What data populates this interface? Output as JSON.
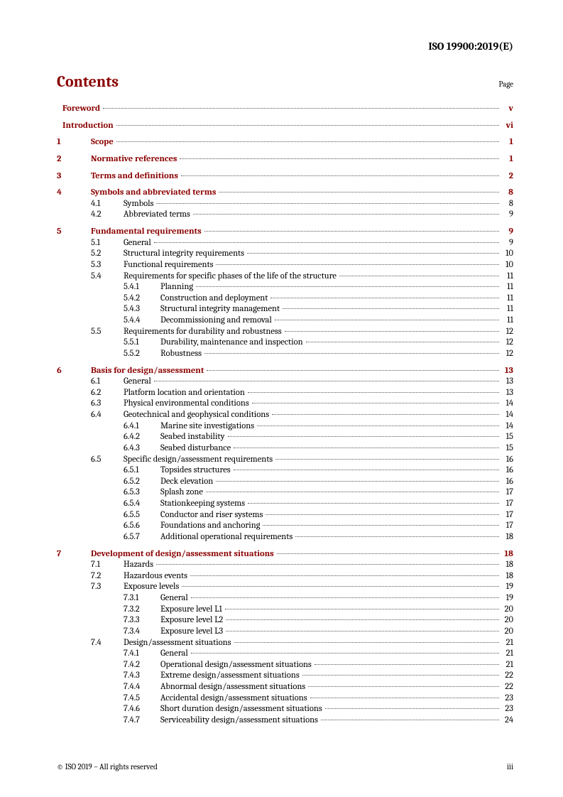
{
  "docId": "ISO 19900:2019(E)",
  "header": {
    "title": "Contents",
    "pageLabel": "Page"
  },
  "footer": {
    "left": "© ISO 2019 – All rights reserved",
    "right": "iii"
  },
  "toc": [
    {
      "level": 0,
      "num": "",
      "title": "Foreword",
      "page": "v",
      "bold": true,
      "red": true,
      "gap": false
    },
    {
      "level": 0,
      "num": "",
      "title": "Introduction",
      "page": "vi",
      "bold": true,
      "red": true,
      "gap": true
    },
    {
      "level": 1,
      "num": "1",
      "title": "Scope",
      "page": "1",
      "bold": true,
      "red": true,
      "gap": true
    },
    {
      "level": 1,
      "num": "2",
      "title": "Normative references",
      "page": "1",
      "bold": true,
      "red": true,
      "gap": true
    },
    {
      "level": 1,
      "num": "3",
      "title": "Terms and definitions",
      "page": "2",
      "bold": true,
      "red": true,
      "gap": true
    },
    {
      "level": 1,
      "num": "4",
      "title": "Symbols and abbreviated terms",
      "page": "8",
      "bold": true,
      "red": true,
      "gap": true
    },
    {
      "level": 2,
      "num": "4.1",
      "title": "Symbols",
      "page": "8",
      "bold": false,
      "red": false,
      "gap": false
    },
    {
      "level": 2,
      "num": "4.2",
      "title": "Abbreviated terms",
      "page": "9",
      "bold": false,
      "red": false,
      "gap": false
    },
    {
      "level": 1,
      "num": "5",
      "title": "Fundamental requirements",
      "page": "9",
      "bold": true,
      "red": true,
      "gap": true
    },
    {
      "level": 2,
      "num": "5.1",
      "title": "General",
      "page": "9",
      "bold": false,
      "red": false,
      "gap": false
    },
    {
      "level": 2,
      "num": "5.2",
      "title": "Structural integrity requirements",
      "page": "10",
      "bold": false,
      "red": false,
      "gap": false
    },
    {
      "level": 2,
      "num": "5.3",
      "title": "Functional requirements",
      "page": "10",
      "bold": false,
      "red": false,
      "gap": false
    },
    {
      "level": 2,
      "num": "5.4",
      "title": "Requirements for specific phases of the life of the structure",
      "page": "11",
      "bold": false,
      "red": false,
      "gap": false
    },
    {
      "level": 3,
      "num": "5.4.1",
      "title": "Planning",
      "page": "11",
      "bold": false,
      "red": false,
      "gap": false
    },
    {
      "level": 3,
      "num": "5.4.2",
      "title": "Construction and deployment",
      "page": "11",
      "bold": false,
      "red": false,
      "gap": false
    },
    {
      "level": 3,
      "num": "5.4.3",
      "title": "Structural integrity management",
      "page": "11",
      "bold": false,
      "red": false,
      "gap": false
    },
    {
      "level": 3,
      "num": "5.4.4",
      "title": "Decommissioning and removal",
      "page": "11",
      "bold": false,
      "red": false,
      "gap": false
    },
    {
      "level": 2,
      "num": "5.5",
      "title": "Requirements for durability and robustness",
      "page": "12",
      "bold": false,
      "red": false,
      "gap": false
    },
    {
      "level": 3,
      "num": "5.5.1",
      "title": "Durability, maintenance and inspection",
      "page": "12",
      "bold": false,
      "red": false,
      "gap": false
    },
    {
      "level": 3,
      "num": "5.5.2",
      "title": "Robustness",
      "page": "12",
      "bold": false,
      "red": false,
      "gap": false
    },
    {
      "level": 1,
      "num": "6",
      "title": "Basis for design/assessment",
      "page": "13",
      "bold": true,
      "red": true,
      "gap": true
    },
    {
      "level": 2,
      "num": "6.1",
      "title": "General",
      "page": "13",
      "bold": false,
      "red": false,
      "gap": false
    },
    {
      "level": 2,
      "num": "6.2",
      "title": "Platform location and orientation",
      "page": "13",
      "bold": false,
      "red": false,
      "gap": false
    },
    {
      "level": 2,
      "num": "6.3",
      "title": "Physical environmental conditions",
      "page": "14",
      "bold": false,
      "red": false,
      "gap": false
    },
    {
      "level": 2,
      "num": "6.4",
      "title": "Geotechnical and geophysical conditions",
      "page": "14",
      "bold": false,
      "red": false,
      "gap": false
    },
    {
      "level": 3,
      "num": "6.4.1",
      "title": "Marine site investigations",
      "page": "14",
      "bold": false,
      "red": false,
      "gap": false
    },
    {
      "level": 3,
      "num": "6.4.2",
      "title": "Seabed instability",
      "page": "15",
      "bold": false,
      "red": false,
      "gap": false
    },
    {
      "level": 3,
      "num": "6.4.3",
      "title": "Seabed disturbance",
      "page": "15",
      "bold": false,
      "red": false,
      "gap": false
    },
    {
      "level": 2,
      "num": "6.5",
      "title": "Specific design/assessment requirements",
      "page": "16",
      "bold": false,
      "red": false,
      "gap": false
    },
    {
      "level": 3,
      "num": "6.5.1",
      "title": "Topsides structures",
      "page": "16",
      "bold": false,
      "red": false,
      "gap": false
    },
    {
      "level": 3,
      "num": "6.5.2",
      "title": "Deck elevation",
      "page": "16",
      "bold": false,
      "red": false,
      "gap": false
    },
    {
      "level": 3,
      "num": "6.5.3",
      "title": "Splash zone",
      "page": "17",
      "bold": false,
      "red": false,
      "gap": false
    },
    {
      "level": 3,
      "num": "6.5.4",
      "title": "Stationkeeping systems",
      "page": "17",
      "bold": false,
      "red": false,
      "gap": false
    },
    {
      "level": 3,
      "num": "6.5.5",
      "title": "Conductor and riser systems",
      "page": "17",
      "bold": false,
      "red": false,
      "gap": false
    },
    {
      "level": 3,
      "num": "6.5.6",
      "title": "Foundations and anchoring",
      "page": "17",
      "bold": false,
      "red": false,
      "gap": false
    },
    {
      "level": 3,
      "num": "6.5.7",
      "title": "Additional operational requirements",
      "page": "18",
      "bold": false,
      "red": false,
      "gap": false
    },
    {
      "level": 1,
      "num": "7",
      "title": "Development of design/assessment situations",
      "page": "18",
      "bold": true,
      "red": true,
      "gap": true
    },
    {
      "level": 2,
      "num": "7.1",
      "title": "Hazards",
      "page": "18",
      "bold": false,
      "red": false,
      "gap": false
    },
    {
      "level": 2,
      "num": "7.2",
      "title": "Hazardous events",
      "page": "18",
      "bold": false,
      "red": false,
      "gap": false
    },
    {
      "level": 2,
      "num": "7.3",
      "title": "Exposure levels",
      "page": "19",
      "bold": false,
      "red": false,
      "gap": false
    },
    {
      "level": 3,
      "num": "7.3.1",
      "title": "General",
      "page": "19",
      "bold": false,
      "red": false,
      "gap": false
    },
    {
      "level": 3,
      "num": "7.3.2",
      "title": "Exposure level L1",
      "page": "20",
      "bold": false,
      "red": false,
      "gap": false
    },
    {
      "level": 3,
      "num": "7.3.3",
      "title": "Exposure level L2",
      "page": "20",
      "bold": false,
      "red": false,
      "gap": false
    },
    {
      "level": 3,
      "num": "7.3.4",
      "title": "Exposure level L3",
      "page": "20",
      "bold": false,
      "red": false,
      "gap": false
    },
    {
      "level": 2,
      "num": "7.4",
      "title": "Design/assessment situations",
      "page": "21",
      "bold": false,
      "red": false,
      "gap": false
    },
    {
      "level": 3,
      "num": "7.4.1",
      "title": "General",
      "page": "21",
      "bold": false,
      "red": false,
      "gap": false
    },
    {
      "level": 3,
      "num": "7.4.2",
      "title": "Operational design/assessment situations",
      "page": "21",
      "bold": false,
      "red": false,
      "gap": false
    },
    {
      "level": 3,
      "num": "7.4.3",
      "title": "Extreme design/assessment situations",
      "page": "22",
      "bold": false,
      "red": false,
      "gap": false
    },
    {
      "level": 3,
      "num": "7.4.4",
      "title": "Abnormal design/assessment situations",
      "page": "22",
      "bold": false,
      "red": false,
      "gap": false
    },
    {
      "level": 3,
      "num": "7.4.5",
      "title": "Accidental design/assessment situations",
      "page": "23",
      "bold": false,
      "red": false,
      "gap": false
    },
    {
      "level": 3,
      "num": "7.4.6",
      "title": "Short duration design/assessment situations",
      "page": "23",
      "bold": false,
      "red": false,
      "gap": false
    },
    {
      "level": 3,
      "num": "7.4.7",
      "title": "Serviceability design/assessment situations",
      "page": "24",
      "bold": false,
      "red": false,
      "gap": false
    }
  ]
}
